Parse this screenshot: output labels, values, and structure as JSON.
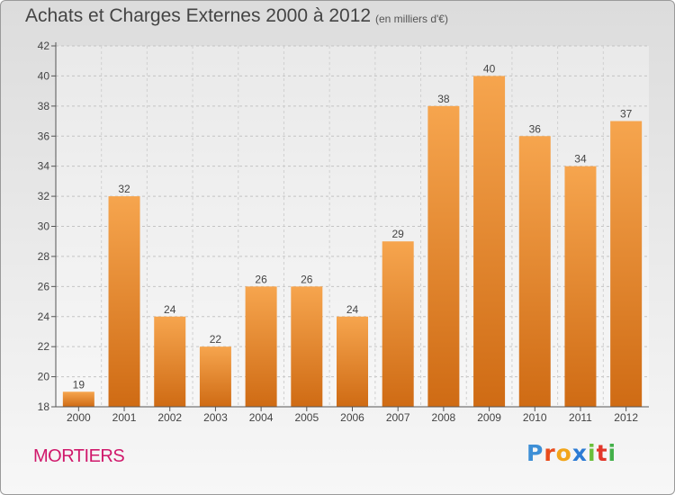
{
  "page": {
    "title": "Achats et Charges Externes 2000 à 2012",
    "unit_note": "(en milliers d'€)",
    "location": "MORTIERS",
    "brand": {
      "letters": [
        "P",
        "r",
        "o",
        "x",
        "i",
        "t",
        "i"
      ],
      "colors": [
        "#3d8fd6",
        "#e94c1c",
        "#f2a51a",
        "#2c7bd4",
        "#6bbf3a",
        "#e2372a",
        "#43b04a"
      ]
    }
  },
  "chart_data": {
    "type": "bar",
    "title": "Achats et Charges Externes 2000 à 2012",
    "subtitle": "(en milliers d'€)",
    "categories": [
      "2000",
      "2001",
      "2002",
      "2003",
      "2004",
      "2005",
      "2006",
      "2007",
      "2008",
      "2009",
      "2010",
      "2011",
      "2012"
    ],
    "values": [
      19,
      32,
      24,
      22,
      26,
      26,
      24,
      29,
      38,
      40,
      36,
      34,
      37
    ],
    "ylim": [
      18,
      42
    ],
    "yticks": [
      18,
      20,
      22,
      24,
      26,
      28,
      30,
      32,
      34,
      36,
      38,
      40,
      42
    ],
    "grid": true,
    "bar_color_top": "#f6a54e",
    "bar_color_bottom": "#cf6b14",
    "legend": "none"
  }
}
